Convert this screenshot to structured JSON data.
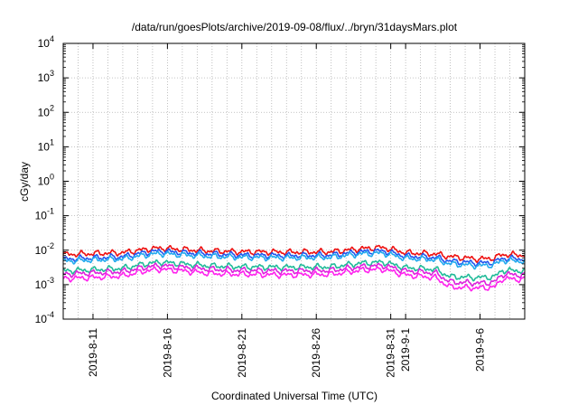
{
  "chart_data": {
    "type": "line",
    "title": "/data/run/goesPlots/archive/2019-09-08/flux/../bryn/31daysMars.plot",
    "xlabel": "Coordinated Universal Time (UTC)",
    "ylabel": "cGy/day",
    "yscale": "log",
    "ylim_exponents": [
      -4,
      4
    ],
    "y_tick_base": "10",
    "y_tick_exponents": [
      "-4",
      "-3",
      "-2",
      "-1",
      "0",
      "1",
      "2",
      "3",
      "4"
    ],
    "xlim_days": [
      0,
      31
    ],
    "x_ticks": [
      {
        "day": 2,
        "label": "2019-8-11"
      },
      {
        "day": 7,
        "label": "2019-8-16"
      },
      {
        "day": 12,
        "label": "2019-8-21"
      },
      {
        "day": 17,
        "label": "2019-8-26"
      },
      {
        "day": 22,
        "label": "2019-8-31"
      },
      {
        "day": 23,
        "label": "2019-9-1"
      },
      {
        "day": 28,
        "label": "2019-9-6"
      }
    ],
    "x_minor_grid_every_day": true,
    "grid": true,
    "series": [
      {
        "color": "#ee1111",
        "points": [
          [
            0,
            0.0075
          ],
          [
            2,
            0.008
          ],
          [
            4,
            0.0085
          ],
          [
            5.5,
            0.0105
          ],
          [
            6.5,
            0.0115
          ],
          [
            8,
            0.0105
          ],
          [
            10,
            0.0095
          ],
          [
            12,
            0.009
          ],
          [
            15,
            0.0088
          ],
          [
            18,
            0.009
          ],
          [
            20,
            0.011
          ],
          [
            21.5,
            0.012
          ],
          [
            23,
            0.0085
          ],
          [
            25,
            0.0078
          ],
          [
            26,
            0.0065
          ],
          [
            28,
            0.0055
          ],
          [
            29,
            0.006
          ],
          [
            29.5,
            0.0075
          ],
          [
            31,
            0.0072
          ]
        ]
      },
      {
        "color": "#2255ee",
        "points": [
          [
            0,
            0.0055
          ],
          [
            2,
            0.006
          ],
          [
            4,
            0.0065
          ],
          [
            5.5,
            0.0085
          ],
          [
            6.5,
            0.0095
          ],
          [
            8,
            0.0085
          ],
          [
            10,
            0.0078
          ],
          [
            12,
            0.0072
          ],
          [
            15,
            0.007
          ],
          [
            18,
            0.0072
          ],
          [
            20,
            0.009
          ],
          [
            21.5,
            0.0095
          ],
          [
            23,
            0.0068
          ],
          [
            25,
            0.0062
          ],
          [
            26,
            0.0048
          ],
          [
            28,
            0.0042
          ],
          [
            29,
            0.0045
          ],
          [
            29.5,
            0.0058
          ],
          [
            31,
            0.0056
          ]
        ]
      },
      {
        "color": "#22aaee",
        "points": [
          [
            0,
            0.0048
          ],
          [
            2,
            0.0052
          ],
          [
            4,
            0.0056
          ],
          [
            5.5,
            0.0072
          ],
          [
            6.5,
            0.008
          ],
          [
            8,
            0.0073
          ],
          [
            10,
            0.0066
          ],
          [
            12,
            0.0062
          ],
          [
            15,
            0.006
          ],
          [
            18,
            0.0062
          ],
          [
            20,
            0.0078
          ],
          [
            21.5,
            0.0082
          ],
          [
            23,
            0.0058
          ],
          [
            25,
            0.0053
          ],
          [
            26,
            0.004
          ],
          [
            28,
            0.0035
          ],
          [
            29,
            0.0038
          ],
          [
            29.5,
            0.005
          ],
          [
            31,
            0.0048
          ]
        ]
      },
      {
        "color": "#22bb99",
        "points": [
          [
            0,
            0.0025
          ],
          [
            2,
            0.0027
          ],
          [
            4,
            0.003
          ],
          [
            5.5,
            0.004
          ],
          [
            6.5,
            0.0045
          ],
          [
            8,
            0.004
          ],
          [
            10,
            0.0035
          ],
          [
            12,
            0.0033
          ],
          [
            15,
            0.0032
          ],
          [
            18,
            0.0033
          ],
          [
            20,
            0.0042
          ],
          [
            21.5,
            0.0045
          ],
          [
            23,
            0.0031
          ],
          [
            25,
            0.0028
          ],
          [
            26,
            0.0017
          ],
          [
            28,
            0.0016
          ],
          [
            29,
            0.0017
          ],
          [
            29.5,
            0.0026
          ],
          [
            31,
            0.0025
          ]
        ]
      },
      {
        "color": "#dd22dd",
        "points": [
          [
            0,
            0.002
          ],
          [
            2,
            0.0022
          ],
          [
            4,
            0.0024
          ],
          [
            5.5,
            0.0032
          ],
          [
            6.5,
            0.0036
          ],
          [
            8,
            0.0032
          ],
          [
            10,
            0.0028
          ],
          [
            12,
            0.0026
          ],
          [
            15,
            0.0025
          ],
          [
            18,
            0.0026
          ],
          [
            20,
            0.0033
          ],
          [
            21.5,
            0.0036
          ],
          [
            23,
            0.0025
          ],
          [
            25,
            0.0022
          ],
          [
            26,
            0.0012
          ],
          [
            28,
            0.0011
          ],
          [
            29,
            0.0012
          ],
          [
            29.5,
            0.002
          ],
          [
            31,
            0.0019
          ]
        ]
      },
      {
        "color": "#ff22ee",
        "points": [
          [
            0,
            0.0015
          ],
          [
            2,
            0.0016
          ],
          [
            4,
            0.0018
          ],
          [
            5.5,
            0.0025
          ],
          [
            6.5,
            0.0028
          ],
          [
            8,
            0.0025
          ],
          [
            10,
            0.0021
          ],
          [
            12,
            0.002
          ],
          [
            15,
            0.0019
          ],
          [
            18,
            0.002
          ],
          [
            20,
            0.0026
          ],
          [
            21.5,
            0.0028
          ],
          [
            23,
            0.0019
          ],
          [
            25,
            0.0016
          ],
          [
            26,
            0.00085
          ],
          [
            28,
            0.0008
          ],
          [
            29,
            0.00085
          ],
          [
            29.5,
            0.0015
          ],
          [
            31,
            0.0014
          ]
        ]
      }
    ]
  }
}
